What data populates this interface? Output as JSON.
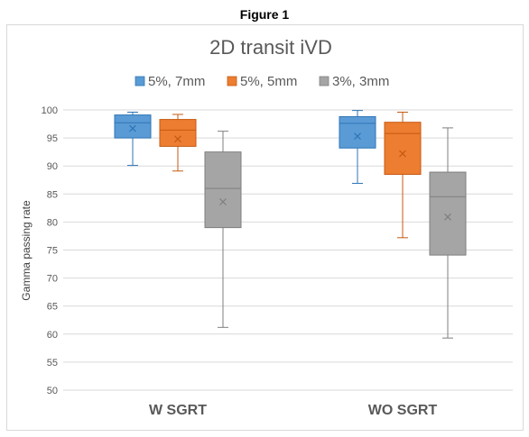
{
  "figure_label": "Figure 1",
  "chart_data": {
    "type": "box",
    "title": "2D transit iVD",
    "xlabel": "",
    "ylabel": "Gamma passing rate",
    "ylim": [
      50,
      100
    ],
    "yticks": [
      50,
      55,
      60,
      65,
      70,
      75,
      80,
      85,
      90,
      95,
      100
    ],
    "categories": [
      "W SGRT",
      "WO SGRT"
    ],
    "legend_position": "top",
    "grid": true,
    "series": [
      {
        "name": "5%, 7mm",
        "color": "#5b9bd5",
        "stroke": "#2e75b6",
        "boxes": [
          {
            "min": 90.1,
            "q1": 95.0,
            "median": 97.7,
            "q3": 99.1,
            "max": 99.6,
            "mean": 96.7
          },
          {
            "min": 86.9,
            "q1": 93.2,
            "median": 97.6,
            "q3": 98.8,
            "max": 99.9,
            "mean": 95.3
          }
        ]
      },
      {
        "name": "5%, 5mm",
        "color": "#ed7d31",
        "stroke": "#c55a11",
        "boxes": [
          {
            "min": 89.1,
            "q1": 93.5,
            "median": 96.4,
            "q3": 98.3,
            "max": 99.2,
            "mean": 94.8
          },
          {
            "min": 77.2,
            "q1": 88.5,
            "median": 95.8,
            "q3": 97.8,
            "max": 99.6,
            "mean": 92.2
          }
        ]
      },
      {
        "name": "3%, 3mm",
        "color": "#a5a5a5",
        "stroke": "#7f7f7f",
        "boxes": [
          {
            "min": 61.2,
            "q1": 79.0,
            "median": 86.0,
            "q3": 92.5,
            "max": 96.2,
            "mean": 83.6
          },
          {
            "min": 59.3,
            "q1": 74.1,
            "median": 84.5,
            "q3": 88.9,
            "max": 96.8,
            "mean": 80.9
          }
        ]
      }
    ]
  }
}
